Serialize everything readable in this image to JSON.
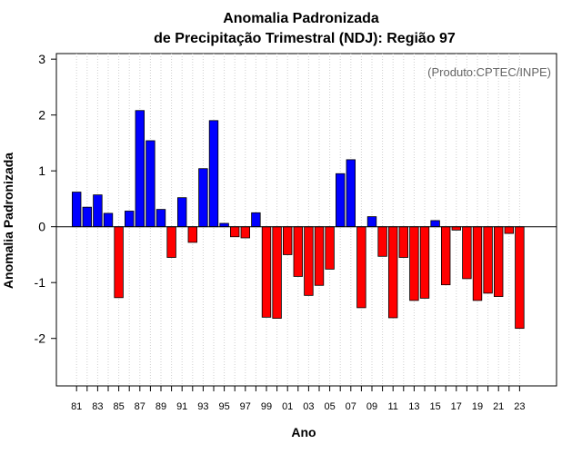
{
  "chart_data": {
    "type": "bar",
    "title": "Anomalia Padronizada",
    "subtitle": "de Precipitação Trimestral (NDJ): Região 97",
    "xlabel": "Ano",
    "ylabel": "Anomalia Padronizada",
    "annotation": "(Produto:CPTEC/INPE)",
    "ylim": [
      -2.85,
      3.1
    ],
    "yticks": [
      -2,
      -1,
      0,
      1,
      2,
      3
    ],
    "ytick_labels": [
      "-2",
      "-1",
      "0",
      "1",
      "2",
      "3"
    ],
    "xtick_labels": [
      "81",
      "83",
      "85",
      "87",
      "89",
      "91",
      "93",
      "95",
      "97",
      "99",
      "01",
      "03",
      "05",
      "07",
      "09",
      "11",
      "13",
      "15",
      "17",
      "19",
      "21",
      "23"
    ],
    "categories": [
      "1981",
      "1982",
      "1983",
      "1984",
      "1985",
      "1986",
      "1987",
      "1988",
      "1989",
      "1990",
      "1991",
      "1992",
      "1993",
      "1994",
      "1995",
      "1996",
      "1997",
      "1998",
      "1999",
      "2000",
      "2001",
      "2002",
      "2003",
      "2004",
      "2005",
      "2006",
      "2007",
      "2008",
      "2009",
      "2010",
      "2011",
      "2012",
      "2013",
      "2014",
      "2015",
      "2016",
      "2017",
      "2018",
      "2019",
      "2020",
      "2021",
      "2022",
      "2023"
    ],
    "values": [
      0.62,
      0.35,
      0.57,
      0.24,
      -1.27,
      0.28,
      2.08,
      1.54,
      0.31,
      -0.55,
      0.52,
      -0.28,
      1.04,
      1.9,
      0.06,
      -0.18,
      -0.2,
      0.25,
      -1.62,
      -1.64,
      -0.5,
      -0.89,
      -1.23,
      -1.05,
      -0.76,
      0.95,
      1.2,
      -1.45,
      0.18,
      -0.53,
      -1.63,
      -0.55,
      -1.32,
      -1.28,
      0.11,
      -1.04,
      -0.06,
      -0.93,
      -1.32,
      -1.19,
      -1.25,
      -0.12,
      -1.82
    ],
    "colors": {
      "positive": "#0000ff",
      "negative": "#ff0000"
    },
    "grid": "vertical-dotted"
  }
}
